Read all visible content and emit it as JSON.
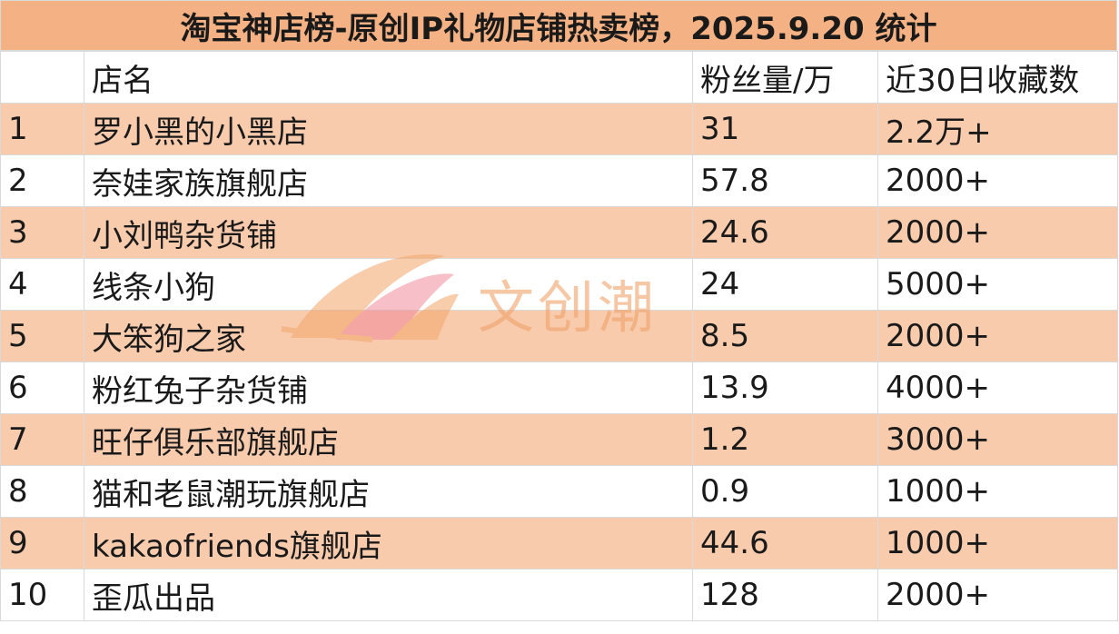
{
  "title": "淘宝神店榜-原创IP礼物店铺热卖榜，2025.9.20 统计",
  "headers": {
    "rank": "",
    "name": "店名",
    "fans": "粉丝量/万",
    "favorites": "近30日收藏数"
  },
  "rows": [
    {
      "rank": "1",
      "name": "罗小黑的小黑店",
      "fans": "31",
      "favorites": "2.2万+"
    },
    {
      "rank": "2",
      "name": "奈娃家族旗舰店",
      "fans": "57.8",
      "favorites": "2000+"
    },
    {
      "rank": "3",
      "name": "小刘鸭杂货铺",
      "fans": "24.6",
      "favorites": "2000+"
    },
    {
      "rank": "4",
      "name": "线条小狗",
      "fans": "24",
      "favorites": "5000+"
    },
    {
      "rank": "5",
      "name": "大笨狗之家",
      "fans": "8.5",
      "favorites": "2000+"
    },
    {
      "rank": "6",
      "name": "粉红兔子杂货铺",
      "fans": "13.9",
      "favorites": "4000+"
    },
    {
      "rank": "7",
      "name": "旺仔俱乐部旗舰店",
      "fans": "1.2",
      "favorites": "3000+"
    },
    {
      "rank": "8",
      "name": "猫和老鼠潮玩旗舰店",
      "fans": "0.9",
      "favorites": "1000+"
    },
    {
      "rank": "9",
      "name": "kakaofriends旗舰店",
      "fans": "44.6",
      "favorites": "1000+"
    },
    {
      "rank": "10",
      "name": "歪瓜出品",
      "fans": "128",
      "favorites": "2000+"
    }
  ],
  "watermark": {
    "text": "文创潮",
    "logo_icon": "fish-logo-icon"
  },
  "colors": {
    "title_bg": "#f4b183",
    "shaded_row_bg": "#f8cbad",
    "grid_line": "#d9d9d9",
    "watermark": "#f0a26a"
  }
}
